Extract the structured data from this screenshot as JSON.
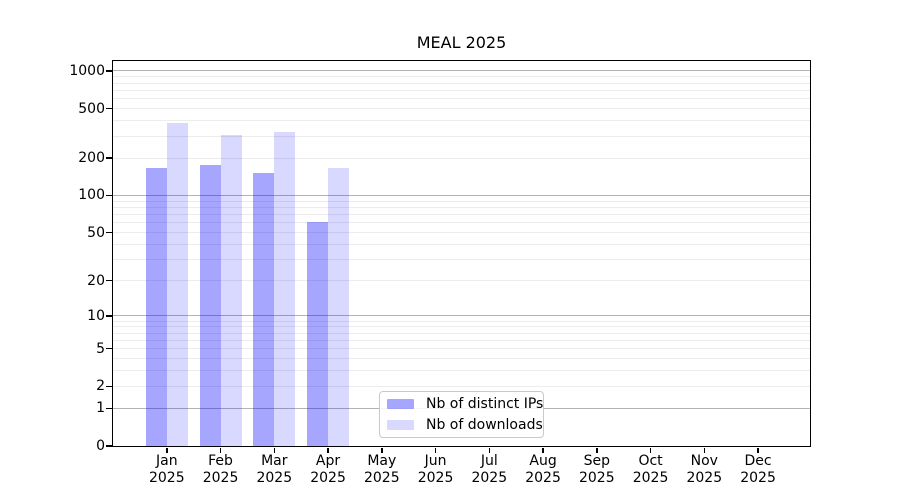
{
  "title": "MEAL 2025",
  "chart_data": {
    "type": "bar",
    "title": "MEAL 2025",
    "categories": [
      "Jan",
      "Feb",
      "Mar",
      "Apr",
      "May",
      "Jun",
      "Jul",
      "Aug",
      "Sep",
      "Oct",
      "Nov",
      "Dec"
    ],
    "x_year": "2025",
    "series": [
      {
        "name": "Nb of distinct IPs",
        "color": "rgba(0,0,255,0.35)",
        "values": [
          165,
          175,
          152,
          61,
          0,
          0,
          0,
          0,
          0,
          0,
          0,
          0
        ]
      },
      {
        "name": "Nb of downloads",
        "color": "rgba(0,0,255,0.15)",
        "values": [
          385,
          305,
          325,
          168,
          0,
          0,
          0,
          0,
          0,
          0,
          0,
          0
        ]
      }
    ],
    "yscale": "log10(value+1)",
    "yticks": [
      0,
      1,
      2,
      5,
      10,
      20,
      50,
      100,
      200,
      500,
      1000
    ],
    "ylim": [
      0,
      1280
    ],
    "xlabel": "",
    "ylabel": "",
    "grid": true,
    "legend_position": "inside-bottom-center"
  },
  "colors": {
    "grid_major": "#b3b3b3",
    "grid_minor": "#ececec",
    "spine": "#000000",
    "background": "#ffffff",
    "text": "#000000"
  }
}
